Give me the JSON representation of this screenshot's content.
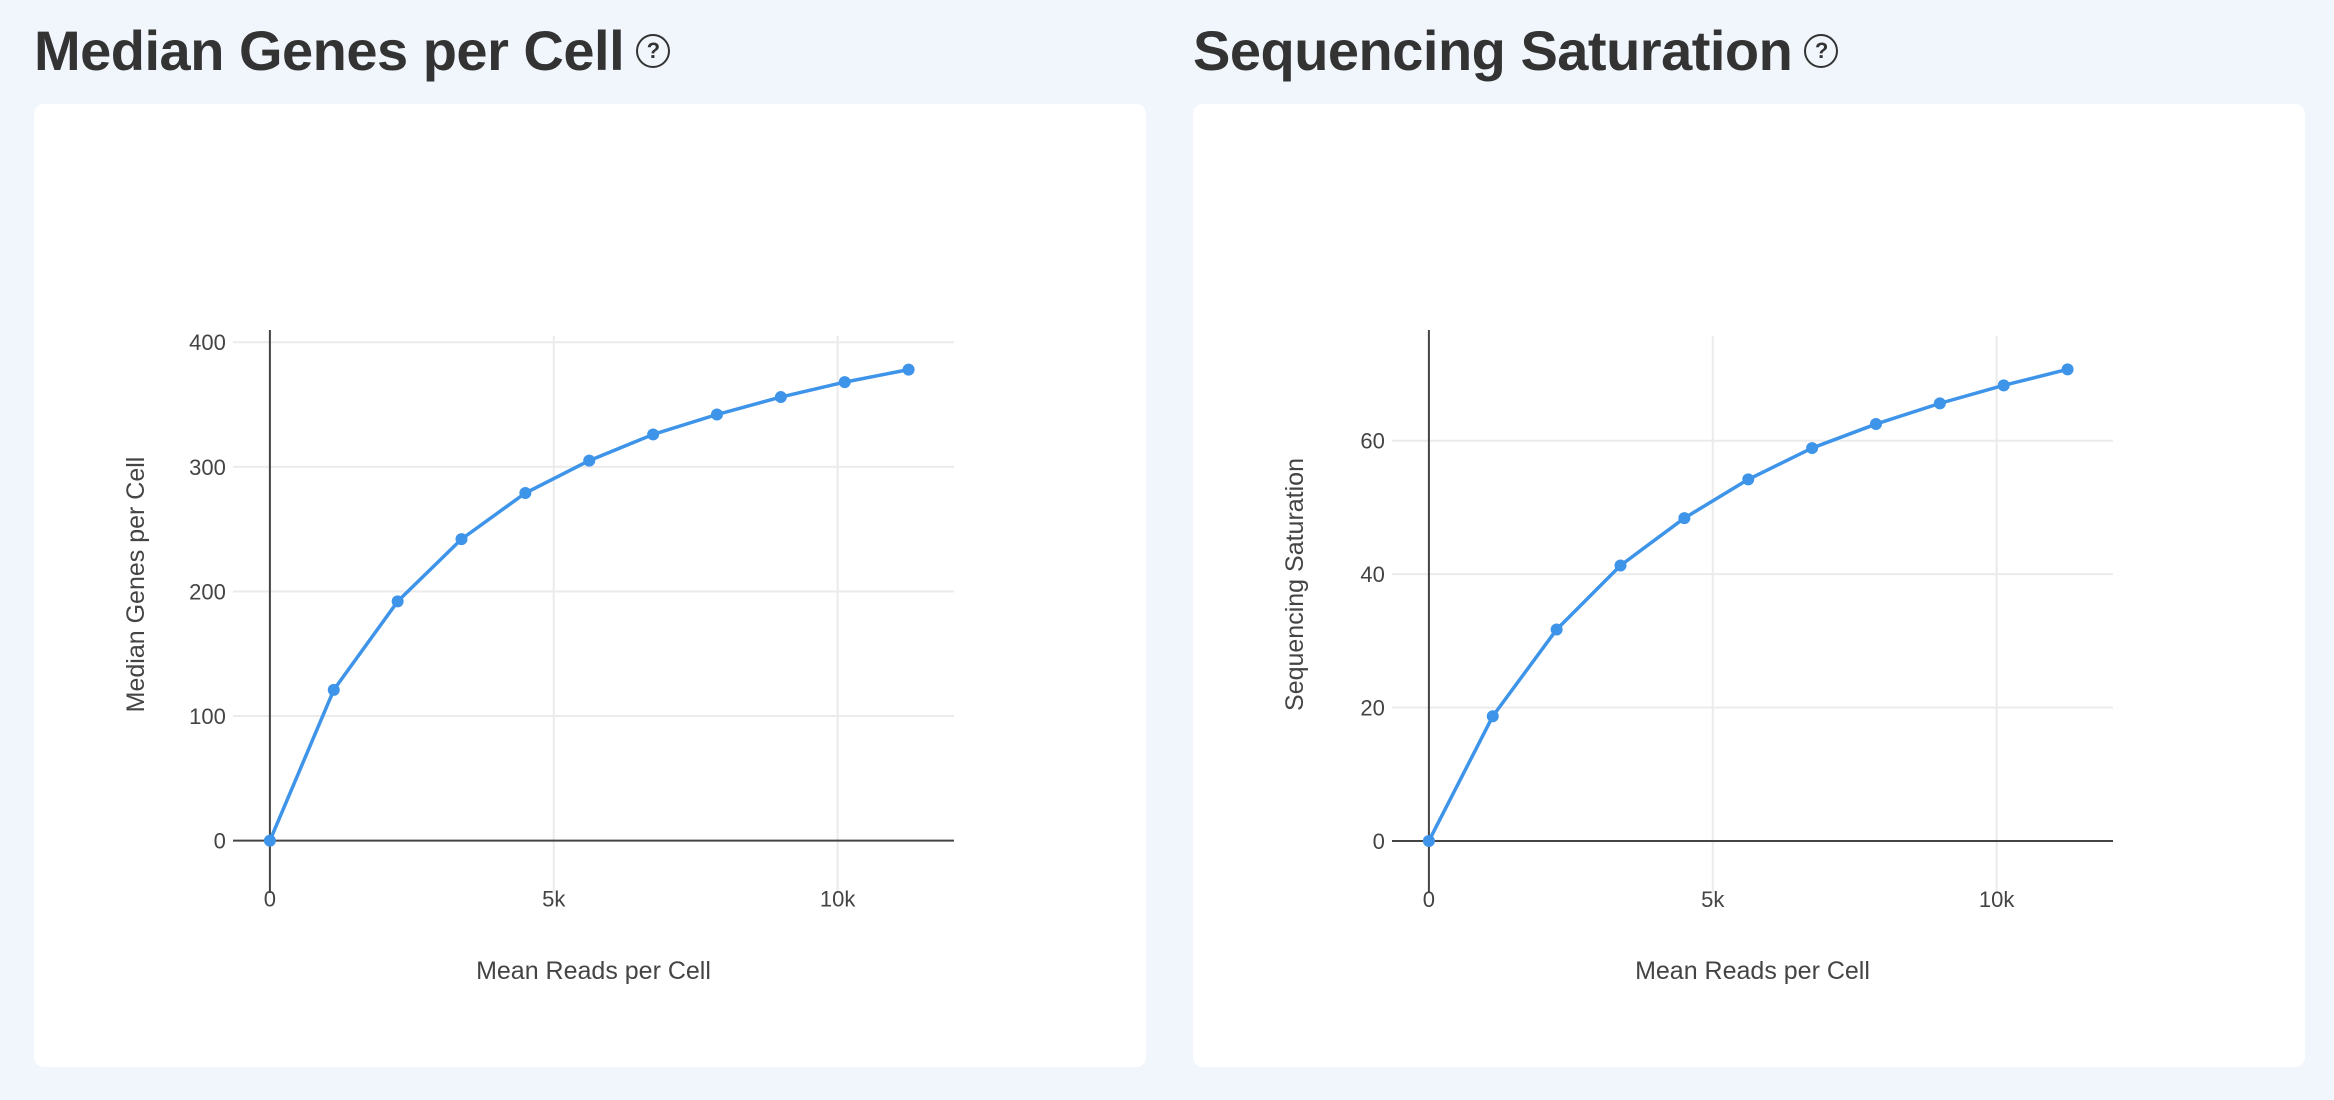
{
  "panels": [
    {
      "title": "Median Genes per Cell",
      "help_icon": "question-circle-icon"
    },
    {
      "title": "Sequencing Saturation",
      "help_icon": "question-circle-icon"
    }
  ],
  "chart_data": [
    {
      "type": "line",
      "xlabel": "Mean Reads per Cell",
      "ylabel": "Median Genes per Cell",
      "x": [
        0,
        1125,
        2250,
        3375,
        4500,
        5625,
        6750,
        7875,
        9000,
        10125,
        11250
      ],
      "values": [
        0,
        121,
        192,
        242,
        279,
        305,
        326,
        342,
        356,
        368,
        378
      ],
      "xticks": [
        {
          "v": 0,
          "label": "0"
        },
        {
          "v": 5000,
          "label": "5k"
        },
        {
          "v": 10000,
          "label": "10k"
        }
      ],
      "yticks": [
        {
          "v": 0,
          "label": "0"
        },
        {
          "v": 100,
          "label": "100"
        },
        {
          "v": 200,
          "label": "200"
        },
        {
          "v": 300,
          "label": "300"
        },
        {
          "v": 400,
          "label": "400"
        }
      ],
      "xlim": [
        -650,
        12050
      ],
      "ylim": [
        -42,
        405
      ],
      "grid": true,
      "color": "#3d94e8"
    },
    {
      "type": "line",
      "xlabel": "Mean Reads per Cell",
      "ylabel": "Sequencing Saturation",
      "x": [
        0,
        1125,
        2250,
        3375,
        4500,
        5625,
        6750,
        7875,
        9000,
        10125,
        11250
      ],
      "values": [
        0,
        18.7,
        31.7,
        41.3,
        48.4,
        54.2,
        58.9,
        62.5,
        65.6,
        68.3,
        70.7
      ],
      "xticks": [
        {
          "v": 0,
          "label": "0"
        },
        {
          "v": 5000,
          "label": "5k"
        },
        {
          "v": 10000,
          "label": "10k"
        }
      ],
      "yticks": [
        {
          "v": 0,
          "label": "0"
        },
        {
          "v": 20,
          "label": "20"
        },
        {
          "v": 40,
          "label": "40"
        },
        {
          "v": 60,
          "label": "60"
        }
      ],
      "xlim": [
        -650,
        12050
      ],
      "ylim": [
        -7.8,
        75.7
      ],
      "grid": true,
      "color": "#3d94e8"
    }
  ]
}
